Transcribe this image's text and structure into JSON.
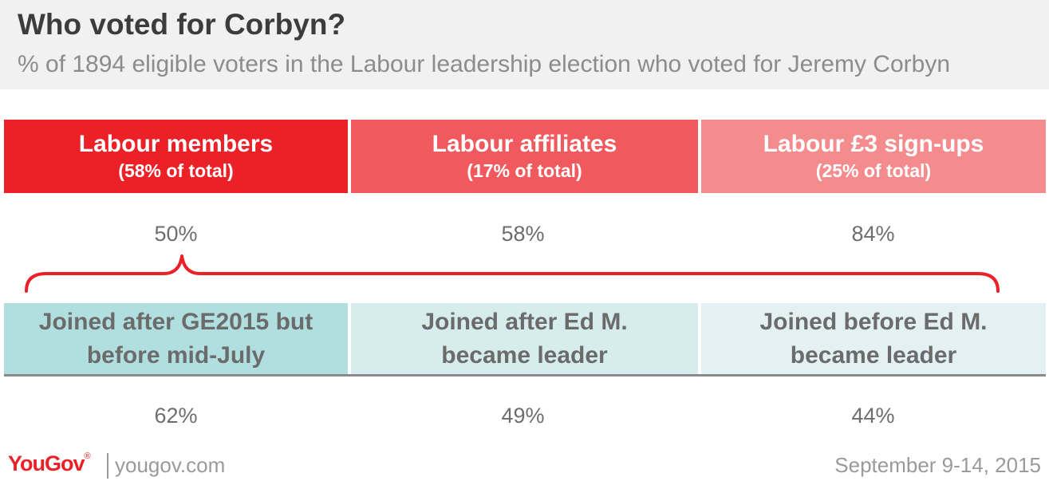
{
  "header": {
    "title": "Who voted for Corbyn?",
    "subtitle": "% of 1894 eligible voters in the Labour leadership election who voted for Jeremy Corbyn"
  },
  "chart_data": {
    "type": "table",
    "groups": [
      {
        "label": "Labour members",
        "sublabel": "(58% of total)",
        "value": "50%"
      },
      {
        "label": "Labour affiliates",
        "sublabel": "(17% of total)",
        "value": "58%"
      },
      {
        "label": "Labour £3 sign-ups",
        "sublabel": "(25% of total)",
        "value": "84%"
      }
    ],
    "member_breakdown": [
      {
        "label_line1": "Joined after GE2015 but",
        "label_line2": "before mid-July",
        "value": "62%"
      },
      {
        "label_line1": "Joined after Ed M.",
        "label_line2": "became leader",
        "value": "49%"
      },
      {
        "label_line1": "Joined before Ed M.",
        "label_line2": "became leader",
        "value": "44%"
      }
    ],
    "colors": {
      "members": "#ec2027",
      "affiliates": "#f05a5e",
      "signups": "#f48c8e",
      "breakdown_1": "#b1dfe0",
      "breakdown_2": "#d6eced",
      "breakdown_3": "#e3f1f2",
      "brace": "#ec2027"
    }
  },
  "footer": {
    "logo": "YouGov",
    "logo_mark": "®",
    "url": "yougov.com",
    "date": "September 9-14, 2015"
  }
}
